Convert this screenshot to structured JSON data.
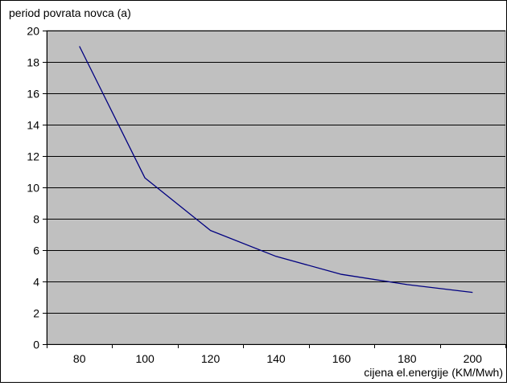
{
  "chart_data": {
    "type": "line",
    "title": "",
    "ylabel": "period povrata novca (a)",
    "xlabel": "cijena el.energije (KM/Mwh)",
    "x": [
      80,
      100,
      120,
      140,
      160,
      180,
      200
    ],
    "series": [
      {
        "values": [
          19.0,
          10.6,
          7.25,
          5.6,
          4.45,
          3.8,
          3.3
        ],
        "color": "#000080"
      }
    ],
    "x_ticks": [
      80,
      100,
      120,
      140,
      160,
      180,
      200
    ],
    "y_ticks": [
      0,
      2,
      4,
      6,
      8,
      10,
      12,
      14,
      16,
      18,
      20
    ],
    "ylim": [
      0,
      20
    ],
    "grid": "horizontal",
    "legend": "none",
    "plot_background": "#c0c0c0",
    "gridline_color": "#000000"
  }
}
